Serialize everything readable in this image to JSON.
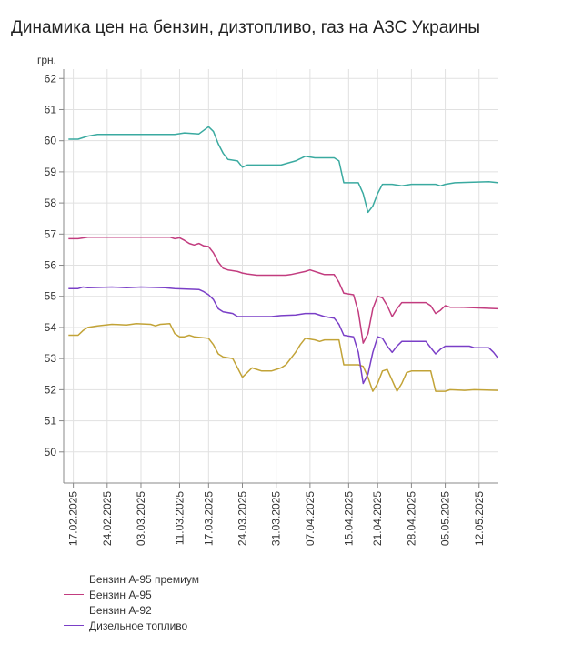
{
  "chart_data": {
    "type": "line",
    "title": "Динамика цен на бензин, дизтопливо, газ на АЗС Украины",
    "ylabel": "грн.",
    "xlabel": "",
    "ylim": [
      49,
      62.3
    ],
    "yticks": [
      50,
      51,
      52,
      53,
      54,
      55,
      56,
      57,
      58,
      59,
      60,
      61,
      62
    ],
    "xlim": [
      "2025-02-15",
      "2025-05-16"
    ],
    "xticks": [
      "17.02.2025",
      "24.02.2025",
      "03.03.2025",
      "11.03.2025",
      "17.03.2025",
      "24.03.2025",
      "31.03.2025",
      "07.04.2025",
      "15.04.2025",
      "21.04.2025",
      "28.04.2025",
      "05.05.2025",
      "12.05.2025"
    ],
    "grid": true,
    "legend_position": "bottom-left",
    "series": [
      {
        "name": "Бензин А-95 премиум",
        "color": "#3aaaa0",
        "points": [
          [
            "2025-02-16",
            60.05
          ],
          [
            "2025-02-18",
            60.05
          ],
          [
            "2025-02-20",
            60.15
          ],
          [
            "2025-02-22",
            60.2
          ],
          [
            "2025-03-03",
            60.2
          ],
          [
            "2025-03-10",
            60.2
          ],
          [
            "2025-03-12",
            60.25
          ],
          [
            "2025-03-15",
            60.22
          ],
          [
            "2025-03-17",
            60.45
          ],
          [
            "2025-03-18",
            60.3
          ],
          [
            "2025-03-19",
            59.9
          ],
          [
            "2025-03-20",
            59.6
          ],
          [
            "2025-03-21",
            59.4
          ],
          [
            "2025-03-23",
            59.35
          ],
          [
            "2025-03-24",
            59.15
          ],
          [
            "2025-03-25",
            59.22
          ],
          [
            "2025-04-01",
            59.22
          ],
          [
            "2025-04-04",
            59.35
          ],
          [
            "2025-04-06",
            59.5
          ],
          [
            "2025-04-08",
            59.45
          ],
          [
            "2025-04-12",
            59.45
          ],
          [
            "2025-04-13",
            59.35
          ],
          [
            "2025-04-14",
            58.65
          ],
          [
            "2025-04-17",
            58.65
          ],
          [
            "2025-04-18",
            58.3
          ],
          [
            "2025-04-19",
            57.7
          ],
          [
            "2025-04-20",
            57.9
          ],
          [
            "2025-04-21",
            58.3
          ],
          [
            "2025-04-22",
            58.6
          ],
          [
            "2025-04-24",
            58.6
          ],
          [
            "2025-04-26",
            58.55
          ],
          [
            "2025-04-28",
            58.6
          ],
          [
            "2025-05-03",
            58.6
          ],
          [
            "2025-05-04",
            58.55
          ],
          [
            "2025-05-05",
            58.6
          ],
          [
            "2025-05-07",
            58.65
          ],
          [
            "2025-05-14",
            58.68
          ],
          [
            "2025-05-16",
            58.65
          ]
        ]
      },
      {
        "name": "Бензин А-95",
        "color": "#c23c7f",
        "points": [
          [
            "2025-02-16",
            56.85
          ],
          [
            "2025-02-18",
            56.85
          ],
          [
            "2025-02-20",
            56.9
          ],
          [
            "2025-03-09",
            56.9
          ],
          [
            "2025-03-10",
            56.85
          ],
          [
            "2025-03-11",
            56.88
          ],
          [
            "2025-03-12",
            56.8
          ],
          [
            "2025-03-13",
            56.7
          ],
          [
            "2025-03-14",
            56.65
          ],
          [
            "2025-03-15",
            56.7
          ],
          [
            "2025-03-16",
            56.62
          ],
          [
            "2025-03-17",
            56.6
          ],
          [
            "2025-03-18",
            56.4
          ],
          [
            "2025-03-19",
            56.1
          ],
          [
            "2025-03-20",
            55.9
          ],
          [
            "2025-03-21",
            55.85
          ],
          [
            "2025-03-23",
            55.8
          ],
          [
            "2025-03-24",
            55.75
          ],
          [
            "2025-03-25",
            55.72
          ],
          [
            "2025-03-27",
            55.68
          ],
          [
            "2025-04-02",
            55.68
          ],
          [
            "2025-04-03",
            55.7
          ],
          [
            "2025-04-06",
            55.8
          ],
          [
            "2025-04-07",
            55.85
          ],
          [
            "2025-04-09",
            55.75
          ],
          [
            "2025-04-10",
            55.7
          ],
          [
            "2025-04-12",
            55.7
          ],
          [
            "2025-04-13",
            55.45
          ],
          [
            "2025-04-14",
            55.1
          ],
          [
            "2025-04-16",
            55.05
          ],
          [
            "2025-04-17",
            54.5
          ],
          [
            "2025-04-18",
            53.5
          ],
          [
            "2025-04-19",
            53.8
          ],
          [
            "2025-04-20",
            54.6
          ],
          [
            "2025-04-21",
            55.0
          ],
          [
            "2025-04-22",
            54.95
          ],
          [
            "2025-04-23",
            54.7
          ],
          [
            "2025-04-24",
            54.35
          ],
          [
            "2025-04-25",
            54.6
          ],
          [
            "2025-04-26",
            54.8
          ],
          [
            "2025-05-01",
            54.8
          ],
          [
            "2025-05-02",
            54.7
          ],
          [
            "2025-05-03",
            54.45
          ],
          [
            "2025-05-04",
            54.55
          ],
          [
            "2025-05-05",
            54.7
          ],
          [
            "2025-05-06",
            54.65
          ],
          [
            "2025-05-08",
            54.65
          ],
          [
            "2025-05-16",
            54.6
          ]
        ]
      },
      {
        "name": "Бензин А-92",
        "color": "#c2a337",
        "points": [
          [
            "2025-02-16",
            53.75
          ],
          [
            "2025-02-18",
            53.75
          ],
          [
            "2025-02-19",
            53.9
          ],
          [
            "2025-02-20",
            54.0
          ],
          [
            "2025-02-22",
            54.05
          ],
          [
            "2025-02-25",
            54.1
          ],
          [
            "2025-02-28",
            54.08
          ],
          [
            "2025-03-01",
            54.1
          ],
          [
            "2025-03-02",
            54.12
          ],
          [
            "2025-03-05",
            54.1
          ],
          [
            "2025-03-06",
            54.05
          ],
          [
            "2025-03-07",
            54.1
          ],
          [
            "2025-03-09",
            54.12
          ],
          [
            "2025-03-10",
            53.8
          ],
          [
            "2025-03-11",
            53.7
          ],
          [
            "2025-03-12",
            53.7
          ],
          [
            "2025-03-13",
            53.75
          ],
          [
            "2025-03-14",
            53.7
          ],
          [
            "2025-03-17",
            53.65
          ],
          [
            "2025-03-18",
            53.45
          ],
          [
            "2025-03-19",
            53.15
          ],
          [
            "2025-03-20",
            53.05
          ],
          [
            "2025-03-22",
            53.0
          ],
          [
            "2025-03-23",
            52.7
          ],
          [
            "2025-03-24",
            52.4
          ],
          [
            "2025-03-25",
            52.55
          ],
          [
            "2025-03-26",
            52.7
          ],
          [
            "2025-03-27",
            52.65
          ],
          [
            "2025-03-28",
            52.6
          ],
          [
            "2025-03-30",
            52.6
          ],
          [
            "2025-03-31",
            52.65
          ],
          [
            "2025-04-01",
            52.7
          ],
          [
            "2025-04-02",
            52.8
          ],
          [
            "2025-04-03",
            53.0
          ],
          [
            "2025-04-04",
            53.2
          ],
          [
            "2025-04-05",
            53.45
          ],
          [
            "2025-04-06",
            53.65
          ],
          [
            "2025-04-08",
            53.6
          ],
          [
            "2025-04-09",
            53.55
          ],
          [
            "2025-04-10",
            53.6
          ],
          [
            "2025-04-13",
            53.6
          ],
          [
            "2025-04-14",
            52.8
          ],
          [
            "2025-04-17",
            52.8
          ],
          [
            "2025-04-18",
            52.75
          ],
          [
            "2025-04-19",
            52.4
          ],
          [
            "2025-04-20",
            51.95
          ],
          [
            "2025-04-21",
            52.2
          ],
          [
            "2025-04-22",
            52.6
          ],
          [
            "2025-04-23",
            52.65
          ],
          [
            "2025-04-24",
            52.3
          ],
          [
            "2025-04-25",
            51.95
          ],
          [
            "2025-04-26",
            52.2
          ],
          [
            "2025-04-27",
            52.55
          ],
          [
            "2025-04-28",
            52.6
          ],
          [
            "2025-05-02",
            52.6
          ],
          [
            "2025-05-03",
            51.95
          ],
          [
            "2025-05-05",
            51.95
          ],
          [
            "2025-05-06",
            52.0
          ],
          [
            "2025-05-09",
            51.98
          ],
          [
            "2025-05-11",
            52.0
          ],
          [
            "2025-05-16",
            51.98
          ]
        ]
      },
      {
        "name": "Дизельное топливо",
        "color": "#7a3fc7",
        "points": [
          [
            "2025-02-16",
            55.25
          ],
          [
            "2025-02-18",
            55.25
          ],
          [
            "2025-02-19",
            55.3
          ],
          [
            "2025-02-20",
            55.28
          ],
          [
            "2025-02-25",
            55.3
          ],
          [
            "2025-02-28",
            55.28
          ],
          [
            "2025-03-03",
            55.3
          ],
          [
            "2025-03-08",
            55.28
          ],
          [
            "2025-03-10",
            55.25
          ],
          [
            "2025-03-15",
            55.22
          ],
          [
            "2025-03-16",
            55.15
          ],
          [
            "2025-03-17",
            55.05
          ],
          [
            "2025-03-18",
            54.9
          ],
          [
            "2025-03-19",
            54.6
          ],
          [
            "2025-03-20",
            54.5
          ],
          [
            "2025-03-22",
            54.45
          ],
          [
            "2025-03-23",
            54.35
          ],
          [
            "2025-03-25",
            54.35
          ],
          [
            "2025-03-30",
            54.35
          ],
          [
            "2025-04-01",
            54.38
          ],
          [
            "2025-04-04",
            54.4
          ],
          [
            "2025-04-06",
            54.45
          ],
          [
            "2025-04-08",
            54.45
          ],
          [
            "2025-04-10",
            54.35
          ],
          [
            "2025-04-12",
            54.3
          ],
          [
            "2025-04-13",
            54.1
          ],
          [
            "2025-04-14",
            53.75
          ],
          [
            "2025-04-16",
            53.7
          ],
          [
            "2025-04-17",
            53.2
          ],
          [
            "2025-04-18",
            52.2
          ],
          [
            "2025-04-19",
            52.5
          ],
          [
            "2025-04-20",
            53.2
          ],
          [
            "2025-04-21",
            53.7
          ],
          [
            "2025-04-22",
            53.65
          ],
          [
            "2025-04-23",
            53.4
          ],
          [
            "2025-04-24",
            53.2
          ],
          [
            "2025-04-25",
            53.4
          ],
          [
            "2025-04-26",
            53.55
          ],
          [
            "2025-05-01",
            53.55
          ],
          [
            "2025-05-02",
            53.35
          ],
          [
            "2025-05-03",
            53.15
          ],
          [
            "2025-05-04",
            53.3
          ],
          [
            "2025-05-05",
            53.4
          ],
          [
            "2025-05-10",
            53.4
          ],
          [
            "2025-05-11",
            53.35
          ],
          [
            "2025-05-14",
            53.35
          ],
          [
            "2025-05-15",
            53.2
          ],
          [
            "2025-05-16",
            53.0
          ]
        ]
      }
    ]
  }
}
